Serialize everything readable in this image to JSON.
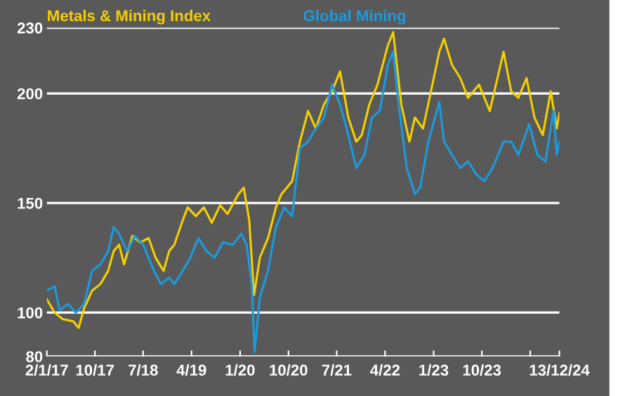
{
  "chart_data": {
    "type": "line",
    "legend": "top left",
    "grid": "y",
    "marker": "none",
    "line_style": "solid",
    "xlim": [
      "2017-01-02",
      "2024-12-13"
    ],
    "ylim": [
      80,
      230
    ],
    "yticks": [
      80,
      100,
      150,
      200,
      230
    ],
    "xticks": [
      {
        "value": "2017-01-02",
        "label": "2/1/17"
      },
      {
        "value": "2017-10-01",
        "label": "10/17"
      },
      {
        "value": "2018-07-01",
        "label": "7/18"
      },
      {
        "value": "2019-04-01",
        "label": "4/19"
      },
      {
        "value": "2020-01-01",
        "label": "1/20"
      },
      {
        "value": "2020-10-01",
        "label": "10/20"
      },
      {
        "value": "2021-07-01",
        "label": "7/21"
      },
      {
        "value": "2022-04-01",
        "label": "4/22"
      },
      {
        "value": "2023-01-01",
        "label": "1/23"
      },
      {
        "value": "2023-10-01",
        "label": "10/23"
      },
      {
        "value": "2024-07-01",
        "label": null
      },
      {
        "value": "2024-12-13",
        "label": "13/12/24"
      }
    ],
    "series": [
      {
        "name": "Metals & Mining Index",
        "color": "#f5d000",
        "x": [
          "2017-01-02",
          "2017-02-15",
          "2017-04-01",
          "2017-06-01",
          "2017-07-01",
          "2017-08-01",
          "2017-09-15",
          "2017-11-01",
          "2017-12-15",
          "2018-01-15",
          "2018-02-15",
          "2018-03-15",
          "2018-05-01",
          "2018-06-15",
          "2018-08-01",
          "2018-09-10",
          "2018-10-25",
          "2018-11-25",
          "2018-12-25",
          "2019-02-10",
          "2019-03-10",
          "2019-04-25",
          "2019-06-10",
          "2019-07-25",
          "2019-09-10",
          "2019-10-22",
          "2019-12-22",
          "2020-01-22",
          "2020-02-22",
          "2020-03-20",
          "2020-04-22",
          "2020-06-07",
          "2020-07-22",
          "2020-08-22",
          "2020-10-22",
          "2020-12-05",
          "2021-01-20",
          "2021-03-05",
          "2021-04-20",
          "2021-06-05",
          "2021-07-20",
          "2021-09-05",
          "2021-10-20",
          "2021-11-20",
          "2022-01-02",
          "2022-02-17",
          "2022-04-17",
          "2022-05-17",
          "2022-07-02",
          "2022-08-17",
          "2022-09-17",
          "2022-11-02",
          "2022-12-17",
          "2023-02-02",
          "2023-03-01",
          "2023-04-15",
          "2023-06-01",
          "2023-07-15",
          "2023-09-15",
          "2023-11-15",
          "2024-02-01",
          "2024-03-15",
          "2024-04-25",
          "2024-06-10",
          "2024-07-25",
          "2024-09-10",
          "2024-10-25",
          "2024-11-28",
          "2024-12-13"
        ],
        "values": [
          106,
          100,
          97,
          96,
          93,
          102,
          110,
          113,
          119,
          128,
          131,
          122,
          135,
          132,
          134,
          125,
          119,
          128,
          131,
          142,
          148,
          144,
          148,
          141,
          149,
          145,
          154,
          157,
          142,
          108,
          125,
          134,
          148,
          154,
          160,
          178,
          192,
          184,
          195,
          201,
          210,
          189,
          178,
          181,
          195,
          204,
          222,
          228,
          195,
          178,
          189,
          184,
          201,
          219,
          225,
          213,
          207,
          198,
          204,
          192,
          219,
          201,
          198,
          207,
          189,
          181,
          201,
          184,
          191
        ]
      },
      {
        "name": "Global Mining",
        "color": "#1a9be0",
        "x": [
          "2017-01-02",
          "2017-02-15",
          "2017-03-15",
          "2017-05-01",
          "2017-06-15",
          "2017-08-01",
          "2017-09-15",
          "2017-11-01",
          "2017-12-15",
          "2018-01-15",
          "2018-02-15",
          "2018-04-01",
          "2018-05-15",
          "2018-07-01",
          "2018-09-01",
          "2018-10-10",
          "2018-11-25",
          "2018-12-25",
          "2019-02-10",
          "2019-03-25",
          "2019-05-10",
          "2019-06-25",
          "2019-08-10",
          "2019-09-25",
          "2019-11-22",
          "2020-01-07",
          "2020-02-07",
          "2020-03-07",
          "2020-03-23",
          "2020-04-22",
          "2020-06-07",
          "2020-07-22",
          "2020-09-07",
          "2020-10-22",
          "2020-12-05",
          "2021-01-20",
          "2021-03-05",
          "2021-04-20",
          "2021-06-05",
          "2021-07-20",
          "2021-09-05",
          "2021-10-20",
          "2021-12-05",
          "2022-01-17",
          "2022-03-02",
          "2022-04-17",
          "2022-05-17",
          "2022-06-17",
          "2022-08-02",
          "2022-09-17",
          "2022-10-17",
          "2022-12-02",
          "2023-02-02",
          "2023-03-01",
          "2023-04-15",
          "2023-06-01",
          "2023-07-15",
          "2023-09-01",
          "2023-10-15",
          "2023-12-01",
          "2024-02-01",
          "2024-03-15",
          "2024-04-25",
          "2024-06-25",
          "2024-08-10",
          "2024-09-25",
          "2024-11-10",
          "2024-11-28",
          "2024-12-13"
        ],
        "values": [
          110,
          112,
          101,
          104,
          100,
          104,
          119,
          122,
          128,
          139,
          136,
          128,
          135,
          131,
          119,
          113,
          116,
          113,
          119,
          125,
          134,
          128,
          125,
          132,
          131,
          136,
          131,
          113,
          82,
          107,
          119,
          139,
          148,
          144,
          175,
          178,
          184,
          189,
          204,
          195,
          181,
          166,
          172,
          189,
          192,
          213,
          219,
          195,
          166,
          154,
          157,
          178,
          196,
          178,
          172,
          166,
          169,
          163,
          160,
          166,
          178,
          178,
          172,
          186,
          172,
          169,
          192,
          172,
          178
        ]
      }
    ]
  }
}
